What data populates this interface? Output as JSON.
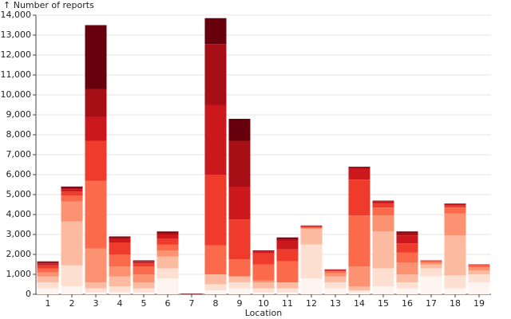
{
  "chart_data": {
    "type": "stacked_bar",
    "y_label": "↑ Number of reports",
    "x_label": "Location",
    "categories": [
      "1",
      "2",
      "3",
      "4",
      "5",
      "6",
      "7",
      "8",
      "9",
      "10",
      "11",
      "12",
      "13",
      "14",
      "15",
      "16",
      "17",
      "18",
      "19"
    ],
    "series": [
      {
        "color": "#fff5f0",
        "values": [
          300,
          400,
          100,
          100,
          100,
          800,
          0,
          200,
          300,
          100,
          100,
          800,
          300,
          100,
          400,
          300,
          900,
          300,
          600
        ]
      },
      {
        "color": "#fee0d2",
        "values": [
          300,
          1050,
          200,
          300,
          200,
          500,
          0,
          300,
          300,
          200,
          200,
          1700,
          300,
          100,
          900,
          300,
          400,
          650,
          400
        ]
      },
      {
        "color": "#fcbba1",
        "values": [
          300,
          2200,
          300,
          500,
          300,
          600,
          0,
          500,
          300,
          300,
          300,
          800,
          300,
          200,
          1850,
          400,
          200,
          2000,
          200
        ]
      },
      {
        "color": "#fc9272",
        "values": [
          200,
          1000,
          1700,
          500,
          400,
          300,
          0,
          0,
          0,
          100,
          0,
          0,
          150,
          1000,
          800,
          600,
          100,
          1100,
          150
        ]
      },
      {
        "color": "#fb6a4a",
        "values": [
          200,
          300,
          3400,
          600,
          400,
          300,
          0,
          1450,
          850,
          800,
          1050,
          50,
          100,
          2550,
          400,
          500,
          50,
          300,
          100
        ]
      },
      {
        "color": "#ef3b2c",
        "values": [
          150,
          200,
          2000,
          600,
          150,
          300,
          0,
          3550,
          2000,
          550,
          600,
          50,
          50,
          1800,
          200,
          450,
          30,
          100,
          30
        ]
      },
      {
        "color": "#cb181d",
        "values": [
          100,
          100,
          1200,
          200,
          80,
          200,
          0,
          3500,
          1650,
          100,
          450,
          30,
          30,
          550,
          100,
          400,
          20,
          50,
          20
        ]
      },
      {
        "color": "#a50f15",
        "values": [
          60,
          80,
          1400,
          60,
          40,
          100,
          0,
          3050,
          2300,
          30,
          100,
          20,
          20,
          100,
          50,
          150,
          0,
          50,
          0
        ]
      },
      {
        "color": "#67000d",
        "values": [
          40,
          70,
          3200,
          40,
          30,
          50,
          30,
          1300,
          1100,
          20,
          50,
          0,
          0,
          0,
          0,
          50,
          0,
          0,
          0
        ]
      }
    ],
    "ylim": [
      0,
      14000
    ],
    "yticks": [
      0,
      {
        "value": 1000,
        "label": "1,000"
      },
      {
        "value": 2000,
        "label": "2,000"
      },
      {
        "value": 3000,
        "label": "3,000"
      },
      {
        "value": 4000,
        "label": "4,000"
      },
      {
        "value": 5000,
        "label": "5,000"
      },
      {
        "value": 6000,
        "label": "6,000"
      },
      {
        "value": 7000,
        "label": "7,000"
      },
      {
        "value": 8000,
        "label": "8,000"
      },
      {
        "value": 9000,
        "label": "9,000"
      },
      {
        "value": 10000,
        "label": "10,000"
      },
      {
        "value": 11000,
        "label": "11,000"
      },
      {
        "value": 12000,
        "label": "12,000"
      },
      {
        "value": 13000,
        "label": "13,000"
      },
      {
        "value": 14000,
        "label": "14,000"
      }
    ],
    "grid": true
  }
}
